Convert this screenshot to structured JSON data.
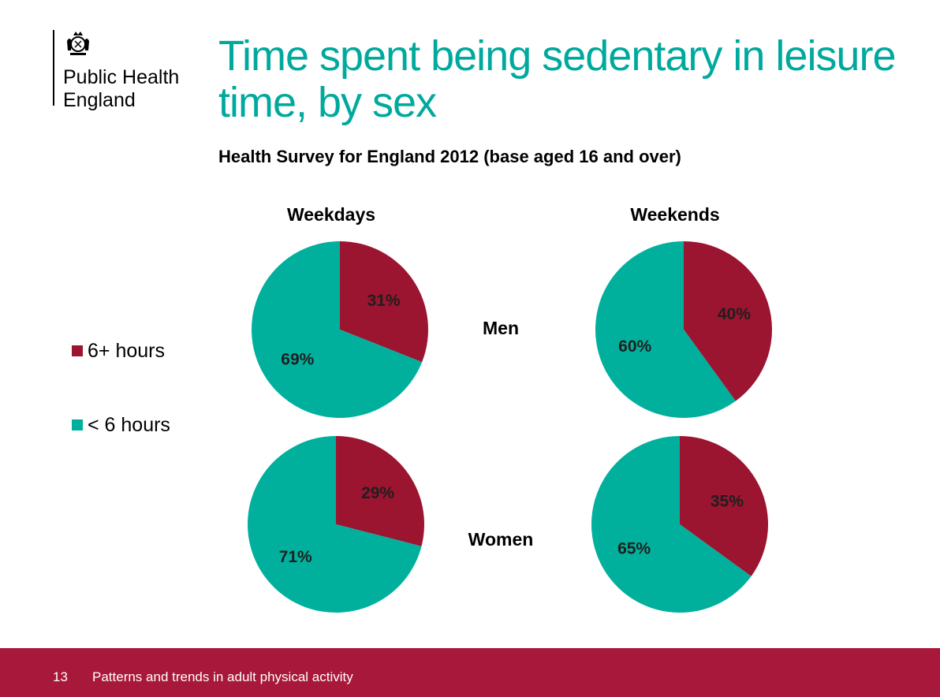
{
  "header": {
    "org_line1": "Public Health",
    "org_line2": "England",
    "title": "Time spent being sedentary in leisure time, by sex",
    "subtitle": "Health Survey for England 2012 (base aged 16 and over)"
  },
  "legend": [
    {
      "label": "6+ hours",
      "color": "#9b1430"
    },
    {
      "label": "< 6 hours",
      "color": "#00b09d"
    }
  ],
  "chart_data": {
    "type": "pie",
    "columns": [
      "Weekdays",
      "Weekends"
    ],
    "rows": [
      "Men",
      "Women"
    ],
    "categories": [
      "6+ hours",
      "< 6 hours"
    ],
    "colors": [
      "#9b1430",
      "#00b09d"
    ],
    "pies": [
      {
        "row": "Men",
        "column": "Weekdays",
        "values": [
          31,
          69
        ],
        "labels": [
          "31%",
          "69%"
        ]
      },
      {
        "row": "Men",
        "column": "Weekends",
        "values": [
          40,
          60
        ],
        "labels": [
          "40%",
          "60%"
        ]
      },
      {
        "row": "Women",
        "column": "Weekdays",
        "values": [
          29,
          71
        ],
        "labels": [
          "29%",
          "71%"
        ]
      },
      {
        "row": "Women",
        "column": "Weekends",
        "values": [
          35,
          65
        ],
        "labels": [
          "35%",
          "65%"
        ]
      }
    ]
  },
  "footer": {
    "page_number": "13",
    "text": "Patterns and trends in adult physical activity"
  }
}
